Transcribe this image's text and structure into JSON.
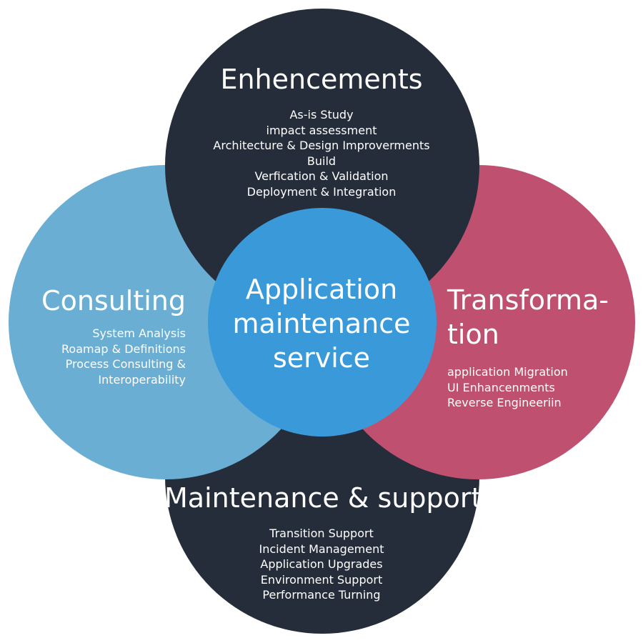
{
  "colors": {
    "top": "#252d3b",
    "bottom": "#252d3b",
    "left": "#6aaed3",
    "right": "#c0506f",
    "center": "#3a9ad9",
    "text": "#ffffff"
  },
  "top": {
    "title": "Enhencements",
    "items": [
      "As-is Study",
      "impact assessment",
      "Architecture & Design Improverments",
      "Build",
      "Verfication & Validation",
      "Deployment & Integration"
    ]
  },
  "left": {
    "title": "Consulting",
    "items": [
      "System Analysis",
      "Roamap & Definitions",
      "Process Consulting &",
      "Interoperability"
    ]
  },
  "right": {
    "title": "Transforma-tion",
    "items": [
      "application Migration",
      "UI Enhancenments",
      "Reverse Engineeriin"
    ]
  },
  "bottom": {
    "title": "Maintenance & support",
    "items": [
      "Transition Support",
      "Incident Management",
      "Application Upgrades",
      "Environment Support",
      "Performance Turning"
    ]
  },
  "center": {
    "title": "Application maintenance service"
  }
}
